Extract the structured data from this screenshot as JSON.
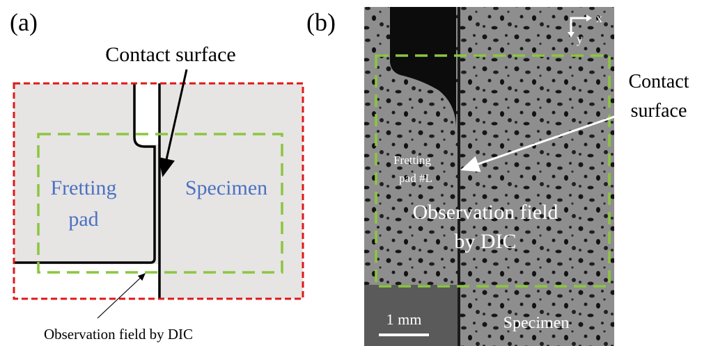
{
  "panel_a": {
    "label": "(a)",
    "contact_surface_label": "Contact surface",
    "pad_label": [
      "Fretting",
      "pad"
    ],
    "specimen_label": "Specimen",
    "observation_label": "Observation field by DIC"
  },
  "panel_b": {
    "label": "(b)",
    "axis_x": "x",
    "axis_y": "y",
    "contact_surface_label": [
      "Contact",
      "surface"
    ],
    "pad_label": [
      "Fretting",
      "pad #L"
    ],
    "observation_label": [
      "Observation field",
      "by DIC"
    ],
    "scale_bar": "1 mm",
    "specimen_label": "Specimen"
  }
}
